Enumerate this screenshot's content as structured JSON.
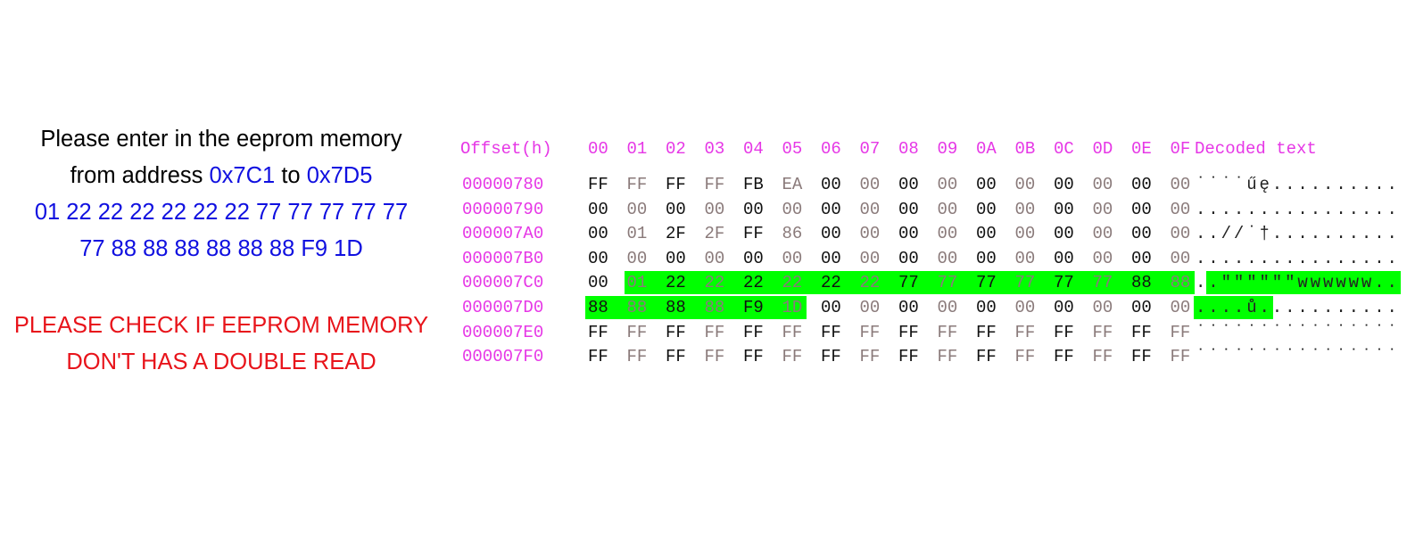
{
  "instructions": {
    "line1": "Please enter in the eeprom memory",
    "line2_prefix": "from address",
    "addr_from": "0x7C1",
    "line2_mid": "to",
    "addr_to": "0x7D5",
    "bytes_line1": "01 22 22 22 22 22 22 77 77 77 77 77",
    "bytes_line2": "77 88 88 88 88 88 88 F9 1D"
  },
  "warning": {
    "line1": "PLEASE CHECK IF EEPROM MEMORY",
    "line2": "DON'T HAS A DOUBLE READ"
  },
  "hex_editor": {
    "offset_header": "Offset(h)",
    "column_headers": [
      "00",
      "01",
      "02",
      "03",
      "04",
      "05",
      "06",
      "07",
      "08",
      "09",
      "0A",
      "0B",
      "0C",
      "0D",
      "0E",
      "0F"
    ],
    "decoded_header": "Decoded text",
    "rows": [
      {
        "offset": "00000780",
        "bytes": [
          "FF",
          "FF",
          "FF",
          "FF",
          "FB",
          "EA",
          "00",
          "00",
          "00",
          "00",
          "00",
          "00",
          "00",
          "00",
          "00",
          "00"
        ],
        "decoded": "˙˙˙˙űę.........."
      },
      {
        "offset": "00000790",
        "bytes": [
          "00",
          "00",
          "00",
          "00",
          "00",
          "00",
          "00",
          "00",
          "00",
          "00",
          "00",
          "00",
          "00",
          "00",
          "00",
          "00"
        ],
        "decoded": "................"
      },
      {
        "offset": "000007A0",
        "bytes": [
          "00",
          "01",
          "2F",
          "2F",
          "FF",
          "86",
          "00",
          "00",
          "00",
          "00",
          "00",
          "00",
          "00",
          "00",
          "00",
          "00"
        ],
        "decoded": "..//˙†.........."
      },
      {
        "offset": "000007B0",
        "bytes": [
          "00",
          "00",
          "00",
          "00",
          "00",
          "00",
          "00",
          "00",
          "00",
          "00",
          "00",
          "00",
          "00",
          "00",
          "00",
          "00"
        ],
        "decoded": "................"
      },
      {
        "offset": "000007C0",
        "bytes": [
          "00",
          "01",
          "22",
          "22",
          "22",
          "22",
          "22",
          "22",
          "77",
          "77",
          "77",
          "77",
          "77",
          "77",
          "88",
          "88"
        ],
        "decoded": "..\"\"\"\"\"\"wwwwww.."
      },
      {
        "offset": "000007D0",
        "bytes": [
          "88",
          "88",
          "88",
          "88",
          "F9",
          "1D",
          "00",
          "00",
          "00",
          "00",
          "00",
          "00",
          "00",
          "00",
          "00",
          "00"
        ],
        "decoded": "....ů..........."
      },
      {
        "offset": "000007E0",
        "bytes": [
          "FF",
          "FF",
          "FF",
          "FF",
          "FF",
          "FF",
          "FF",
          "FF",
          "FF",
          "FF",
          "FF",
          "FF",
          "FF",
          "FF",
          "FF",
          "FF"
        ],
        "decoded": "˙˙˙˙˙˙˙˙˙˙˙˙˙˙˙˙"
      },
      {
        "offset": "000007F0",
        "bytes": [
          "FF",
          "FF",
          "FF",
          "FF",
          "FF",
          "FF",
          "FF",
          "FF",
          "FF",
          "FF",
          "FF",
          "FF",
          "FF",
          "FF",
          "FF",
          "FF"
        ],
        "decoded": "˙˙˙˙˙˙˙˙˙˙˙˙˙˙˙˙"
      }
    ],
    "selection": {
      "start_row": 4,
      "start_col": 1,
      "end_row": 5,
      "end_col": 5
    },
    "colors": {
      "offset": "#e637e6",
      "selection": "#00ff00",
      "instruction_highlight": "#1010e0",
      "warning": "#e8141b"
    }
  }
}
